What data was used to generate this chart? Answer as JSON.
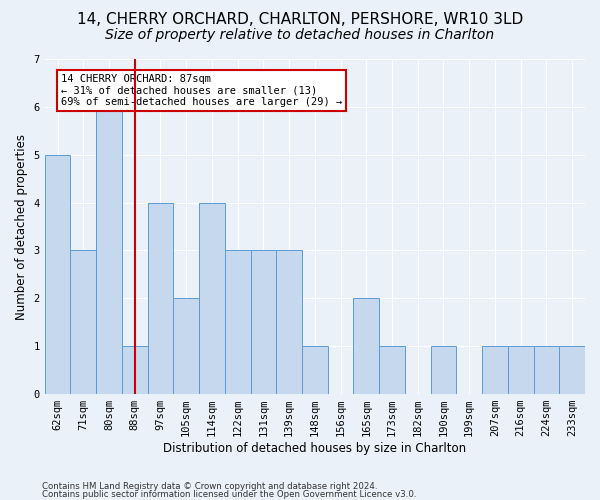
{
  "title1": "14, CHERRY ORCHARD, CHARLTON, PERSHORE, WR10 3LD",
  "title2": "Size of property relative to detached houses in Charlton",
  "xlabel": "Distribution of detached houses by size in Charlton",
  "ylabel": "Number of detached properties",
  "bins": [
    "62sqm",
    "71sqm",
    "80sqm",
    "88sqm",
    "97sqm",
    "105sqm",
    "114sqm",
    "122sqm",
    "131sqm",
    "139sqm",
    "148sqm",
    "156sqm",
    "165sqm",
    "173sqm",
    "182sqm",
    "190sqm",
    "199sqm",
    "207sqm",
    "216sqm",
    "224sqm",
    "233sqm"
  ],
  "values": [
    5,
    3,
    6,
    1,
    4,
    2,
    4,
    3,
    3,
    3,
    1,
    0,
    2,
    1,
    0,
    1,
    0,
    1,
    1,
    1,
    1
  ],
  "bar_color": "#c5d8ed",
  "bar_edge_color": "#5b9bd5",
  "marker_bin_index": 3,
  "marker_color": "#cc0000",
  "annotation_line1": "14 CHERRY ORCHARD: 87sqm",
  "annotation_line2": "← 31% of detached houses are smaller (13)",
  "annotation_line3": "69% of semi-detached houses are larger (29) →",
  "annotation_box_color": "#ffffff",
  "annotation_box_edge_color": "#cc0000",
  "ylim": [
    0,
    7
  ],
  "yticks": [
    0,
    1,
    2,
    3,
    4,
    5,
    6,
    7
  ],
  "footer1": "Contains HM Land Registry data © Crown copyright and database right 2024.",
  "footer2": "Contains public sector information licensed under the Open Government Licence v3.0.",
  "background_color": "#eaf1f8",
  "grid_color": "#ffffff",
  "title1_fontsize": 11,
  "title2_fontsize": 10,
  "tick_fontsize": 7.5,
  "ylabel_fontsize": 8.5,
  "xlabel_fontsize": 8.5
}
